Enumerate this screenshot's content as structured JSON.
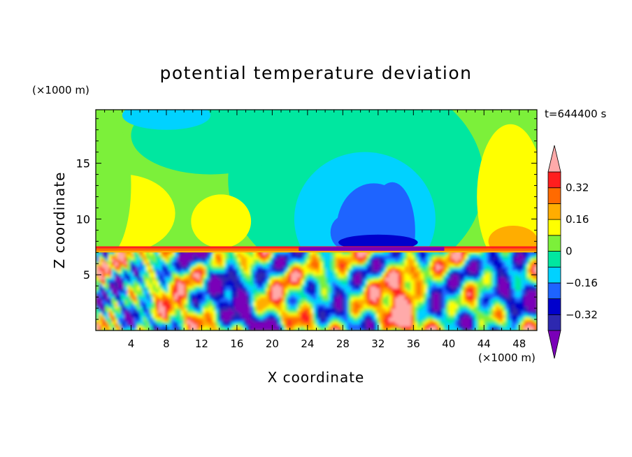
{
  "chart_data": {
    "type": "heatmap",
    "title": "potential temperature deviation",
    "xlabel": "X coordinate",
    "ylabel": "Z coordinate",
    "x_unit_label": "(×1000 m)",
    "y_unit_label": "(×1000 m)",
    "time_label": "t=644400 s",
    "xlim": [
      0,
      50
    ],
    "ylim": [
      0,
      19.8
    ],
    "x_ticks": [
      4,
      8,
      12,
      16,
      20,
      24,
      28,
      32,
      36,
      40,
      44,
      48
    ],
    "y_ticks": [
      5,
      10,
      15
    ],
    "colorbar": {
      "levels": [
        -0.48,
        -0.4,
        -0.32,
        -0.24,
        -0.16,
        -0.08,
        0,
        0.08,
        0.16,
        0.24,
        0.32,
        0.4
      ],
      "tick_labels": [
        0.32,
        0.16,
        0,
        -0.16,
        -0.32
      ],
      "tick_texts": [
        "0.32",
        "0.16",
        "0",
        "−0.16",
        "−0.32"
      ],
      "colors_low_to_high": [
        "#7a00b8",
        "#2d28b0",
        "#0000cc",
        "#1e64ff",
        "#00d2ff",
        "#00e7a0",
        "#7cf03a",
        "#ffff00",
        "#ffad00",
        "#ff6a00",
        "#ff1e1e",
        "#ffaaaa"
      ]
    },
    "features": [
      {
        "x": [
          0,
          50
        ],
        "z": [
          0,
          7.2
        ],
        "description": "Highly mixed, turbulent layer with strong alternating positive and negative deviations"
      },
      {
        "x": [
          0,
          50
        ],
        "z": [
          7.0,
          7.6
        ],
        "description": "Thin strong-gradient interface between lower turbulent layer and upper layer"
      },
      {
        "x": [
          28,
          36
        ],
        "z": [
          7.5,
          13.5
        ],
        "value": -0.24,
        "description": "Negative plume rising above interface"
      },
      {
        "x": [
          44,
          50
        ],
        "z": [
          7.5,
          18
        ],
        "value": 0.16,
        "description": "Positive region at right edge"
      }
    ]
  }
}
